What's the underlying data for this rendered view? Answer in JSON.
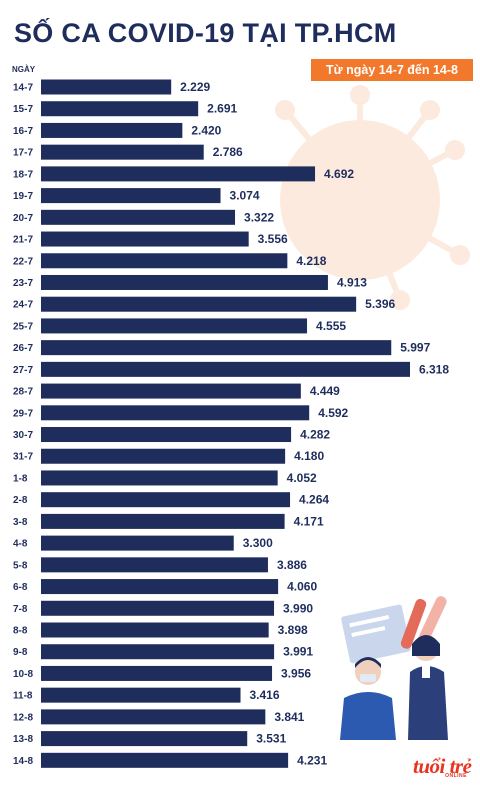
{
  "header": {
    "title": "SỐ CA COVID-19 TẠI TP.HCM",
    "subtitle": "Từ ngày 14-7 đến 14-8",
    "axis_header": "NGÀY"
  },
  "colors": {
    "bar": "#1f2d5c",
    "accent": "#f2792b",
    "brand": "#e8321e"
  },
  "logo": {
    "text": "tuổi trẻ",
    "subtext": "ONLINE"
  },
  "chart_data": {
    "type": "bar",
    "orientation": "horizontal",
    "title": "SỐ CA COVID-19 TẠI TP.HCM",
    "subtitle": "Từ ngày 14-7 đến 14-8",
    "ylabel": "NGÀY",
    "xlim": [
      0,
      6318
    ],
    "grid": false,
    "categories": [
      "14-7",
      "15-7",
      "16-7",
      "17-7",
      "18-7",
      "19-7",
      "20-7",
      "21-7",
      "22-7",
      "23-7",
      "24-7",
      "25-7",
      "26-7",
      "27-7",
      "28-7",
      "29-7",
      "30-7",
      "31-7",
      "1-8",
      "2-8",
      "3-8",
      "4-8",
      "5-8",
      "6-8",
      "7-8",
      "8-8",
      "9-8",
      "10-8",
      "11-8",
      "12-8",
      "13-8",
      "14-8"
    ],
    "values": [
      2229,
      2691,
      2420,
      2786,
      4692,
      3074,
      3322,
      3556,
      4218,
      4913,
      5396,
      4555,
      5997,
      6318,
      4449,
      4592,
      4282,
      4180,
      4052,
      4264,
      4171,
      3300,
      3886,
      4060,
      3990,
      3898,
      3991,
      3956,
      3416,
      3841,
      3531,
      4231
    ],
    "value_labels": [
      "2.229",
      "2.691",
      "2.420",
      "2.786",
      "4.692",
      "3.074",
      "3.322",
      "3.556",
      "4.218",
      "4.913",
      "5.396",
      "4.555",
      "5.997",
      "6.318",
      "4.449",
      "4.592",
      "4.282",
      "4.180",
      "4.052",
      "4.264",
      "4.171",
      "3.300",
      "3.886",
      "4.060",
      "3.990",
      "3.898",
      "3.991",
      "3.956",
      "3.416",
      "3.841",
      "3.531",
      "4.231"
    ]
  }
}
